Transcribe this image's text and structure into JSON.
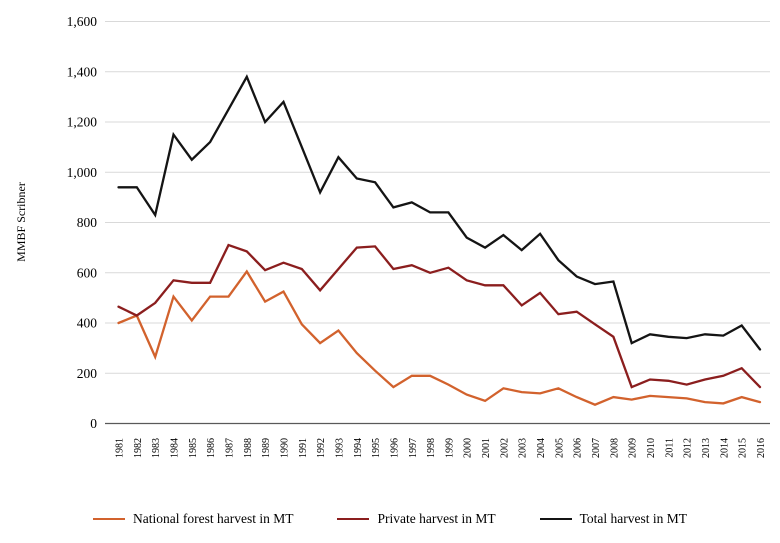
{
  "chart_data": {
    "type": "line",
    "title": "",
    "xlabel": "",
    "ylabel": "MMBF Scribner",
    "ylim": [
      0,
      1600
    ],
    "ytick_step": 200,
    "yticklabels": [
      "0",
      "200",
      "400",
      "600",
      "800",
      "1,000",
      "1,200",
      "1,400",
      "1,600"
    ],
    "grid": "horizontal",
    "legend_position": "bottom",
    "x": [
      1981,
      1982,
      1983,
      1984,
      1985,
      1986,
      1987,
      1988,
      1989,
      1990,
      1991,
      1992,
      1993,
      1994,
      1995,
      1996,
      1997,
      1998,
      1999,
      2000,
      2001,
      2002,
      2003,
      2004,
      2005,
      2006,
      2007,
      2008,
      2009,
      2010,
      2011,
      2012,
      2013,
      2014,
      2015,
      2016
    ],
    "series": [
      {
        "name": "National forest harvest in MT",
        "color": "#D2622D",
        "values": [
          400,
          430,
          265,
          505,
          410,
          505,
          505,
          605,
          485,
          525,
          395,
          320,
          370,
          280,
          210,
          145,
          190,
          190,
          155,
          115,
          90,
          140,
          125,
          120,
          140,
          105,
          75,
          105,
          95,
          110,
          105,
          100,
          85,
          80,
          105,
          85
        ]
      },
      {
        "name": "Private harvest in MT",
        "color": "#8B1E1E",
        "values": [
          465,
          430,
          480,
          570,
          560,
          560,
          710,
          685,
          610,
          640,
          615,
          530,
          615,
          700,
          705,
          615,
          630,
          600,
          620,
          570,
          550,
          550,
          470,
          520,
          435,
          445,
          395,
          345,
          145,
          175,
          170,
          155,
          175,
          190,
          220,
          145
        ]
      },
      {
        "name": "Total harvest in MT",
        "color": "#141414",
        "values": [
          940,
          940,
          830,
          1150,
          1050,
          1120,
          1250,
          1380,
          1200,
          1280,
          1100,
          920,
          1060,
          975,
          960,
          860,
          880,
          840,
          840,
          740,
          700,
          750,
          690,
          755,
          650,
          585,
          555,
          565,
          320,
          355,
          345,
          340,
          355,
          350,
          390,
          295
        ]
      }
    ],
    "colors": {
      "gridline": "#D9D9D9",
      "axis_line": "#595959",
      "text": "#000000",
      "background": "#FFFFFF"
    }
  }
}
